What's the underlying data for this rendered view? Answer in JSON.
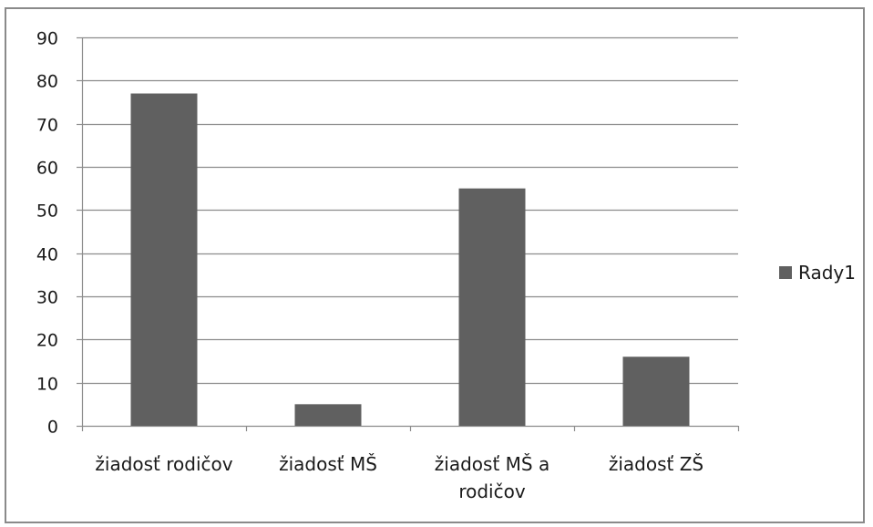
{
  "chart_data": {
    "type": "bar",
    "title": "",
    "xlabel": "",
    "ylabel": "",
    "categories": [
      [
        "žiadosť rodičov"
      ],
      [
        "žiadosť MŠ"
      ],
      [
        "žiadosť MŠ a",
        "rodičov"
      ],
      [
        "žiadosť ZŠ"
      ]
    ],
    "series": [
      {
        "name": "Rady1",
        "values": [
          77,
          5,
          55,
          16
        ],
        "color": "#606060"
      }
    ],
    "ylim": [
      0,
      90
    ],
    "yticks": [
      0,
      10,
      20,
      30,
      40,
      50,
      60,
      70,
      80,
      90
    ],
    "grid": true,
    "legend": "right"
  }
}
